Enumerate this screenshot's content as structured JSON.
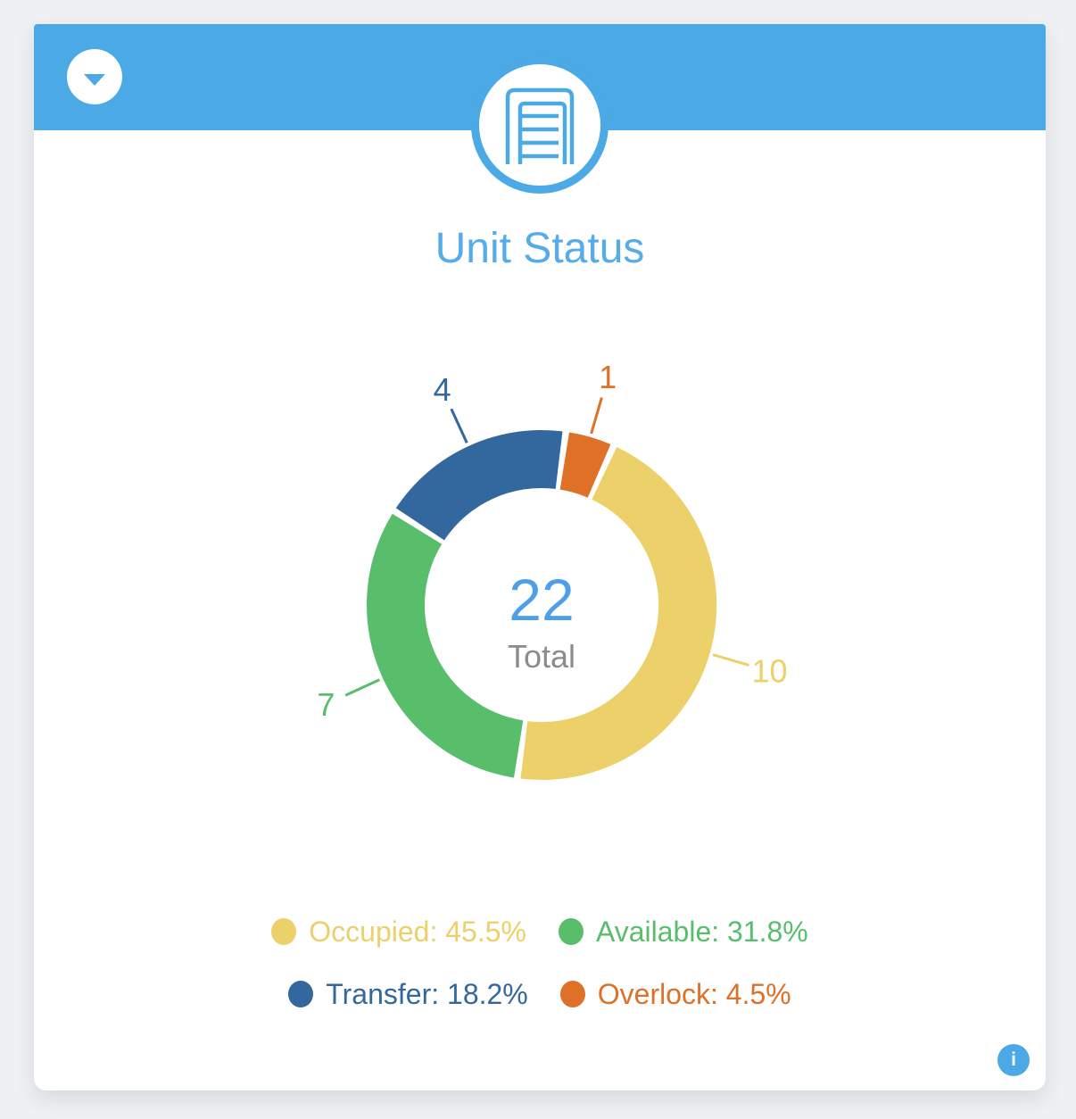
{
  "card": {
    "title": "Unit Status",
    "accent_color": "#4ba9e5",
    "title_color": "#55ace8",
    "info_button": {
      "glyph": "i"
    }
  },
  "chart_data": {
    "type": "donut",
    "title": "Unit Status",
    "total_value": 22,
    "total_label": "Total",
    "start_angle_deg": 8,
    "segments": [
      {
        "name": "Overlock",
        "value": 1,
        "percent": "4.5%",
        "color": "#de7127"
      },
      {
        "name": "Occupied",
        "value": 10,
        "percent": "45.5%",
        "color": "#ecd06a"
      },
      {
        "name": "Available",
        "value": 7,
        "percent": "31.8%",
        "color": "#58be6c"
      },
      {
        "name": "Transfer",
        "value": 4,
        "percent": "18.2%",
        "color": "#33689f"
      }
    ],
    "legend_order": [
      "Occupied",
      "Available",
      "Transfer",
      "Overlock"
    ],
    "center_value_color": "#4d9fe8",
    "center_label_color": "#8b8b8f",
    "legend_position": "bottom"
  }
}
